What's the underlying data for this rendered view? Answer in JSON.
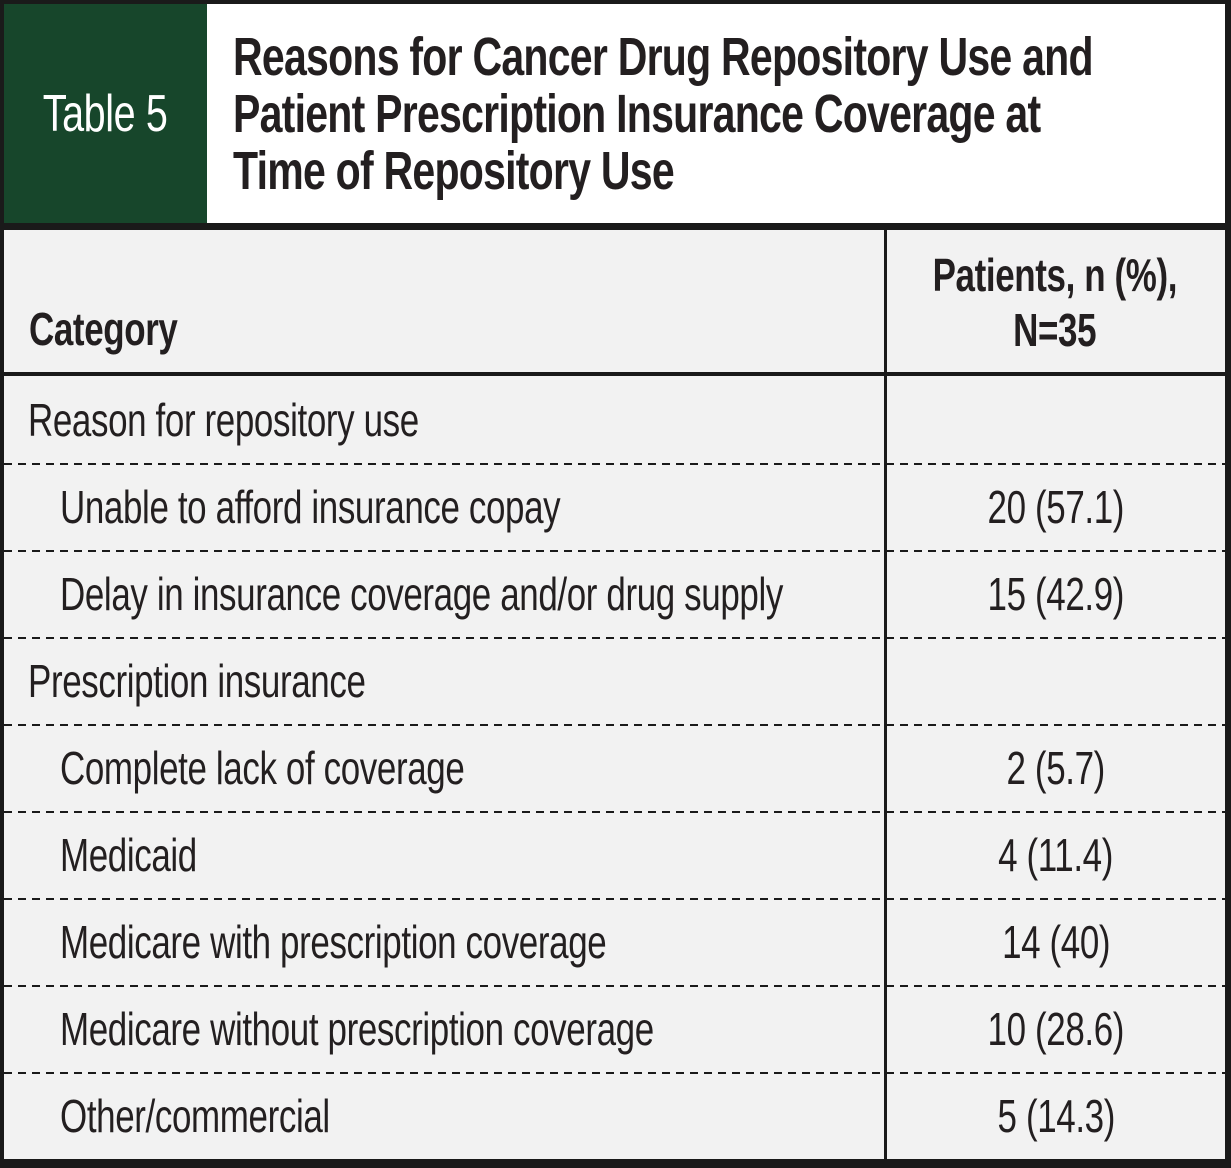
{
  "table_label": "Table 5",
  "title_lines": [
    "Reasons for Cancer Drug Repository Use and",
    "Patient Prescription Insurance Coverage at",
    "Time of Repository Use"
  ],
  "columns": {
    "category": "Category",
    "patients_line1": "Patients, n (%),",
    "patients_line2": "N=35"
  },
  "rows": [
    {
      "label": "Reason for repository use",
      "value": "",
      "type": "section"
    },
    {
      "label": "Unable to afford insurance copay",
      "value": "20 (57.1)",
      "type": "item"
    },
    {
      "label": "Delay in insurance coverage and/or drug supply",
      "value": "15 (42.9)",
      "type": "item"
    },
    {
      "label": "Prescription insurance",
      "value": "",
      "type": "section"
    },
    {
      "label": "Complete lack of coverage",
      "value": "2 (5.7)",
      "type": "item"
    },
    {
      "label": "Medicaid",
      "value": "4 (11.4)",
      "type": "item"
    },
    {
      "label": "Medicare with prescription coverage",
      "value": "14 (40)",
      "type": "item"
    },
    {
      "label": "Medicare without prescription coverage",
      "value": "10 (28.6)",
      "type": "item"
    },
    {
      "label": "Other/commercial",
      "value": "5 (14.3)",
      "type": "item"
    }
  ],
  "colors": {
    "badge_green": "#17462b",
    "frame_black": "#1a1a1a",
    "row_background": "#f2f2f2",
    "text": "#231f20"
  }
}
